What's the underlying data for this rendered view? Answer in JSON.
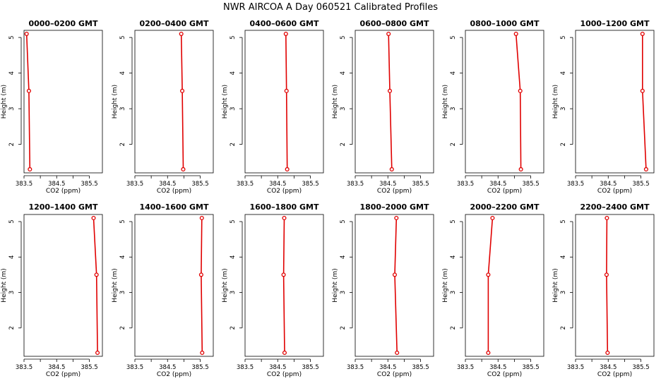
{
  "title": "NWR AIRCOA A  Day 060521  Calibrated Profiles",
  "colors": {
    "series": "#e00000",
    "axis": "#000000"
  },
  "chart_data": [
    {
      "type": "line",
      "title": "0000–0200 GMT",
      "xlabel": "CO2 (ppm)",
      "ylabel": "Height (m)",
      "xlim": [
        383.5,
        385.9
      ],
      "ylim": [
        1.2,
        5.2
      ],
      "xticks": [
        "383.5",
        "384.5",
        "385.5"
      ],
      "yticks": [
        "2",
        "3",
        "4",
        "5"
      ],
      "series": [
        {
          "name": "profile",
          "x": [
            383.58,
            383.65,
            383.68
          ],
          "y": [
            5.1,
            3.5,
            1.3
          ]
        }
      ]
    },
    {
      "type": "line",
      "title": "0200–0400 GMT",
      "xlabel": "CO2 (ppm)",
      "ylabel": "Height (m)",
      "xlim": [
        383.5,
        385.9
      ],
      "ylim": [
        1.2,
        5.2
      ],
      "xticks": [
        "383.5",
        "384.5",
        "385.5"
      ],
      "yticks": [
        "2",
        "3",
        "4",
        "5"
      ],
      "series": [
        {
          "name": "profile",
          "x": [
            384.92,
            384.95,
            384.98
          ],
          "y": [
            5.1,
            3.5,
            1.3
          ]
        }
      ]
    },
    {
      "type": "line",
      "title": "0400–0600 GMT",
      "xlabel": "CO2 (ppm)",
      "ylabel": "Height (m)",
      "xlim": [
        383.5,
        385.9
      ],
      "ylim": [
        1.2,
        5.2
      ],
      "xticks": [
        "383.5",
        "384.5",
        "385.5"
      ],
      "yticks": [
        "2",
        "3",
        "4",
        "5"
      ],
      "series": [
        {
          "name": "profile",
          "x": [
            384.75,
            384.77,
            384.79
          ],
          "y": [
            5.1,
            3.5,
            1.3
          ]
        }
      ]
    },
    {
      "type": "line",
      "title": "0600–0800 GMT",
      "xlabel": "CO2 (ppm)",
      "ylabel": "Height (m)",
      "xlim": [
        383.5,
        385.9
      ],
      "ylim": [
        1.2,
        5.2
      ],
      "xticks": [
        "383.5",
        "384.5",
        "385.5"
      ],
      "yticks": [
        "2",
        "3",
        "4",
        "5"
      ],
      "series": [
        {
          "name": "profile",
          "x": [
            384.52,
            384.56,
            384.62
          ],
          "y": [
            5.1,
            3.5,
            1.3
          ]
        }
      ]
    },
    {
      "type": "line",
      "title": "0800–1000 GMT",
      "xlabel": "CO2 (ppm)",
      "ylabel": "Height (m)",
      "xlim": [
        383.5,
        385.9
      ],
      "ylim": [
        1.2,
        5.2
      ],
      "xticks": [
        "383.5",
        "384.5",
        "385.5"
      ],
      "yticks": [
        "2",
        "3",
        "4",
        "5"
      ],
      "series": [
        {
          "name": "profile",
          "x": [
            385.05,
            385.18,
            385.2
          ],
          "y": [
            5.1,
            3.5,
            1.3
          ]
        }
      ]
    },
    {
      "type": "line",
      "title": "1000–1200 GMT",
      "xlabel": "CO2 (ppm)",
      "ylabel": "Height (m)",
      "xlim": [
        383.5,
        385.9
      ],
      "ylim": [
        1.2,
        5.2
      ],
      "xticks": [
        "383.5",
        "384.5",
        "385.5"
      ],
      "yticks": [
        "2",
        "3",
        "4",
        "5"
      ],
      "series": [
        {
          "name": "profile",
          "x": [
            385.55,
            385.55,
            385.66
          ],
          "y": [
            5.1,
            3.5,
            1.3
          ]
        }
      ]
    },
    {
      "type": "line",
      "title": "1200–1400 GMT",
      "xlabel": "CO2 (ppm)",
      "ylabel": "Height (m)",
      "xlim": [
        383.5,
        385.9
      ],
      "ylim": [
        1.2,
        5.2
      ],
      "xticks": [
        "383.5",
        "384.5",
        "385.5"
      ],
      "yticks": [
        "2",
        "3",
        "4",
        "5"
      ],
      "series": [
        {
          "name": "profile",
          "x": [
            385.63,
            385.72,
            385.75
          ],
          "y": [
            5.1,
            3.5,
            1.3
          ]
        }
      ]
    },
    {
      "type": "line",
      "title": "1400–1600 GMT",
      "xlabel": "CO2 (ppm)",
      "ylabel": "Height (m)",
      "xlim": [
        383.5,
        385.9
      ],
      "ylim": [
        1.2,
        5.2
      ],
      "xticks": [
        "383.5",
        "384.5",
        "385.5"
      ],
      "yticks": [
        "2",
        "3",
        "4",
        "5"
      ],
      "series": [
        {
          "name": "profile",
          "x": [
            385.55,
            385.53,
            385.56
          ],
          "y": [
            5.1,
            3.5,
            1.3
          ]
        }
      ]
    },
    {
      "type": "line",
      "title": "1600–1800 GMT",
      "xlabel": "CO2 (ppm)",
      "ylabel": "Height (m)",
      "xlim": [
        383.5,
        385.9
      ],
      "ylim": [
        1.2,
        5.2
      ],
      "xticks": [
        "383.5",
        "384.5",
        "385.5"
      ],
      "yticks": [
        "2",
        "3",
        "4",
        "5"
      ],
      "series": [
        {
          "name": "profile",
          "x": [
            384.7,
            384.68,
            384.71
          ],
          "y": [
            5.1,
            3.5,
            1.3
          ]
        }
      ]
    },
    {
      "type": "line",
      "title": "1800–2000 GMT",
      "xlabel": "CO2 (ppm)",
      "ylabel": "Height (m)",
      "xlim": [
        383.5,
        385.9
      ],
      "ylim": [
        1.2,
        5.2
      ],
      "xticks": [
        "383.5",
        "384.5",
        "385.5"
      ],
      "yticks": [
        "2",
        "3",
        "4",
        "5"
      ],
      "series": [
        {
          "name": "profile",
          "x": [
            384.76,
            384.71,
            384.78
          ],
          "y": [
            5.1,
            3.5,
            1.3
          ]
        }
      ]
    },
    {
      "type": "line",
      "title": "2000–2200 GMT",
      "xlabel": "CO2 (ppm)",
      "ylabel": "Height (m)",
      "xlim": [
        383.5,
        385.9
      ],
      "ylim": [
        1.2,
        5.2
      ],
      "xticks": [
        "383.5",
        "384.5",
        "385.5"
      ],
      "yticks": [
        "2",
        "3",
        "4",
        "5"
      ],
      "series": [
        {
          "name": "profile",
          "x": [
            384.33,
            384.2,
            384.2
          ],
          "y": [
            5.1,
            3.5,
            1.3
          ]
        }
      ]
    },
    {
      "type": "line",
      "title": "2200–2400 GMT",
      "xlabel": "CO2 (ppm)",
      "ylabel": "Height (m)",
      "xlim": [
        383.5,
        385.9
      ],
      "ylim": [
        1.2,
        5.2
      ],
      "xticks": [
        "383.5",
        "384.5",
        "385.5"
      ],
      "yticks": [
        "2",
        "3",
        "4",
        "5"
      ],
      "series": [
        {
          "name": "profile",
          "x": [
            384.46,
            384.45,
            384.48
          ],
          "y": [
            5.1,
            3.5,
            1.3
          ]
        }
      ]
    }
  ]
}
